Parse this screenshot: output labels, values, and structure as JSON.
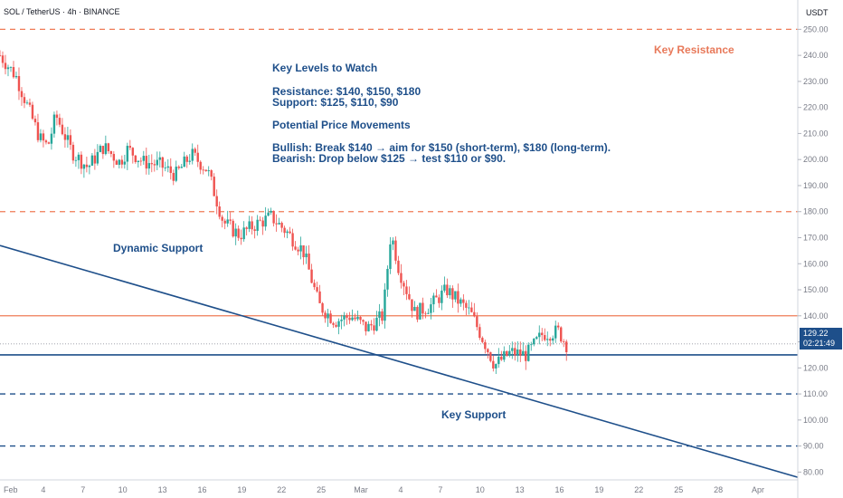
{
  "header": {
    "symbol_title": "SOL / TetherUS · 4h · BINANCE",
    "currency_label": "USDT"
  },
  "price_axis": {
    "labels": [
      "250.00",
      "240.00",
      "230.00",
      "220.00",
      "210.00",
      "200.00",
      "190.00",
      "180.00",
      "170.00",
      "160.00",
      "150.00",
      "140.00",
      "130.00",
      "120.00",
      "110.00",
      "100.00",
      "90.00",
      "80.00"
    ],
    "current_price": "129.22",
    "countdown": "02:21:49"
  },
  "time_axis": {
    "labels": [
      "Feb",
      "4",
      "7",
      "10",
      "13",
      "16",
      "19",
      "22",
      "25",
      "Mar",
      "4",
      "7",
      "10",
      "13",
      "16",
      "19",
      "22",
      "25",
      "28",
      "Apr"
    ]
  },
  "annotations": {
    "key_levels_title": "Key Levels to Watch",
    "resistance_line": "Resistance: $140, $150, $180",
    "support_line": "Support: $125, $110, $90",
    "potential_title": "Potential Price Movements",
    "bullish_line": "Bullish: Break $140 → aim for $150 (short-term), $180 (long-term).",
    "bearish_line": "Bearish: Drop below $125 → test $110 or $90.",
    "dynamic_support": "Dynamic Support",
    "key_support": "Key Support",
    "key_resistance": "Key Resistance"
  },
  "colors": {
    "up": "#26a69a",
    "down": "#ef5350",
    "resistance": "#ef7b56",
    "support": "#1e4f8a",
    "text_blue": "#1e4f8a",
    "text_red": "#e8795a"
  },
  "chart_data": {
    "type": "candlestick",
    "y_range": [
      77,
      255
    ],
    "levels": {
      "key_resistance_dashed": 250,
      "resistance_dashed": 180,
      "resistance_solid": 140,
      "support_solid": 125,
      "support_dashed_1": 110,
      "support_dashed_2": 90
    },
    "dynamic_support_trendline": [
      [
        0,
        167
      ],
      [
        1,
        78
      ]
    ],
    "close_path": [
      [
        0,
        240
      ],
      [
        0.02,
        232
      ],
      [
        0.04,
        216
      ],
      [
        0.05,
        208
      ],
      [
        0.06,
        205
      ],
      [
        0.07,
        217
      ],
      [
        0.09,
        203
      ],
      [
        0.11,
        197
      ],
      [
        0.13,
        205
      ],
      [
        0.15,
        199
      ],
      [
        0.16,
        204
      ],
      [
        0.18,
        199
      ],
      [
        0.2,
        198
      ],
      [
        0.22,
        194
      ],
      [
        0.24,
        202
      ],
      [
        0.26,
        196
      ],
      [
        0.28,
        176
      ],
      [
        0.3,
        171
      ],
      [
        0.32,
        175
      ],
      [
        0.34,
        178
      ],
      [
        0.36,
        172
      ],
      [
        0.38,
        165
      ],
      [
        0.4,
        144
      ],
      [
        0.42,
        138
      ],
      [
        0.44,
        140
      ],
      [
        0.46,
        135
      ],
      [
        0.48,
        140
      ],
      [
        0.49,
        172
      ],
      [
        0.5,
        158
      ],
      [
        0.52,
        141
      ],
      [
        0.54,
        144
      ],
      [
        0.56,
        150
      ],
      [
        0.58,
        144
      ],
      [
        0.59,
        141
      ],
      [
        0.61,
        128
      ],
      [
        0.62,
        121
      ],
      [
        0.64,
        126
      ],
      [
        0.66,
        125
      ],
      [
        0.68,
        133
      ],
      [
        0.7,
        134
      ],
      [
        0.71,
        129
      ]
    ]
  }
}
